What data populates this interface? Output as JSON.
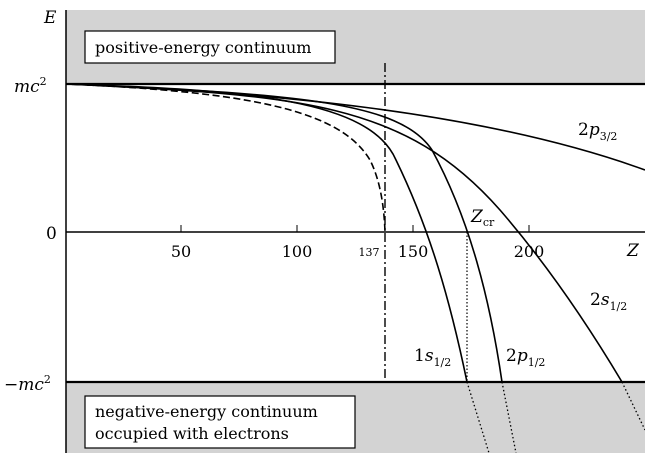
{
  "axes": {
    "y_label": "E",
    "x_label": "Z",
    "y_ticks": [
      {
        "main": "mc",
        "sup": "2",
        "value": "mc2"
      },
      {
        "main": "0",
        "sup": "",
        "value": "0"
      },
      {
        "main": "−mc",
        "sup": "2",
        "value": "-mc2"
      }
    ],
    "x_ticks": [
      "50",
      "100",
      "150",
      "200"
    ],
    "x_marker": "137"
  },
  "boxes": {
    "positive": "positive-energy continuum",
    "negative_line1": "negative-energy continuum",
    "negative_line2": "occupied with electrons"
  },
  "labels": {
    "z_cr_main": "Z",
    "z_cr_sub": "cr",
    "curve_2p32": {
      "n": "2",
      "l": "p",
      "j": "3/2"
    },
    "curve_2s12": {
      "n": "2",
      "s": "s",
      "j": "1/2"
    },
    "curve_1s12": {
      "n": "1",
      "s": "s",
      "j": "1/2"
    },
    "curve_2p12": {
      "n": "2",
      "s": "p",
      "j": "1/2"
    }
  },
  "colors": {
    "continuum_fill": "#d3d3d3",
    "line": "#000000",
    "background": "#ffffff"
  },
  "chart_data": {
    "type": "line",
    "xlabel": "Z",
    "ylabel": "E",
    "x_ticks": [
      50,
      100,
      150,
      200
    ],
    "y_ticks": [
      "-mc^2",
      "0",
      "mc^2"
    ],
    "vertical_markers": [
      {
        "x": 137,
        "style": "dash-dot",
        "label": "137"
      },
      {
        "x": 173,
        "style": "dotted",
        "label": "Z_cr"
      }
    ],
    "series": [
      {
        "name": "1s_{1/2}",
        "style": "solid",
        "dives_into_continuum_at": 173
      },
      {
        "name": "2p_{1/2}",
        "style": "solid",
        "dives_into_continuum_at": 185
      },
      {
        "name": "2s_{1/2}",
        "style": "solid",
        "dives_into_continuum_at": 232
      },
      {
        "name": "2p_{3/2}",
        "style": "solid"
      },
      {
        "name": "",
        "style": "dashed",
        "ends_at": 137
      }
    ]
  }
}
